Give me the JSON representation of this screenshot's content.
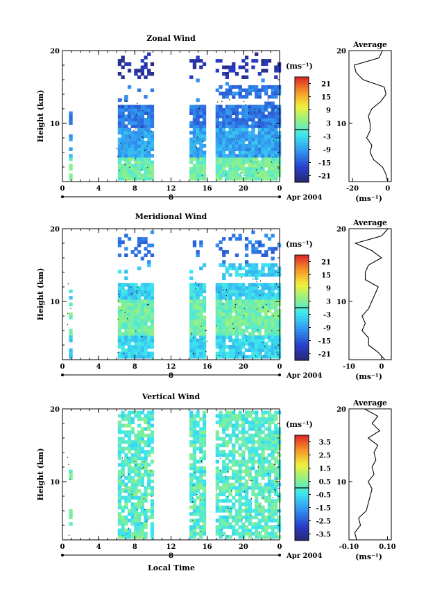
{
  "figure": {
    "xlabel": "Local Time",
    "date_label": "Apr 2004",
    "date_day": "8"
  },
  "chart_data": [
    {
      "type": "heatmap",
      "title": "Zonal Wind",
      "ylabel": "Height (km)",
      "xlabel": "",
      "x_ticks": [
        "0",
        "4",
        "8",
        "12",
        "16",
        "20",
        "0"
      ],
      "y_ticks": [
        "10",
        "20"
      ],
      "xlim": [
        0,
        24
      ],
      "ylim": [
        2,
        20
      ],
      "colorbar": {
        "unit": "(ms⁻¹)",
        "ticks": [
          "21",
          "15",
          "9",
          "3",
          "-3",
          "-9",
          "-15",
          "-21"
        ],
        "range": [
          -24,
          24
        ]
      },
      "data_gaps_hours": [
        [
          1,
          6
        ],
        [
          10,
          14
        ],
        [
          16,
          17
        ]
      ],
      "grid": false,
      "average_profile": {
        "title": "Average",
        "xlabel": "(ms⁻¹)",
        "x_ticks": [
          "-20",
          "0"
        ],
        "xlim": [
          -22,
          2
        ],
        "height_km": [
          2,
          3,
          4,
          5,
          6,
          7,
          8,
          9,
          10,
          11,
          12,
          13,
          14,
          15,
          16,
          17,
          18,
          19,
          20
        ],
        "value": [
          0,
          -1,
          -3,
          -8,
          -10,
          -9,
          -12,
          -10,
          -10,
          -11,
          -9,
          -4,
          -1,
          -2,
          -14,
          -18,
          -19,
          -5,
          -3
        ]
      }
    },
    {
      "type": "heatmap",
      "title": "Meridional Wind",
      "ylabel": "Height (km)",
      "xlabel": "",
      "x_ticks": [
        "0",
        "4",
        "8",
        "12",
        "16",
        "20",
        "0"
      ],
      "y_ticks": [
        "10",
        "20"
      ],
      "xlim": [
        0,
        24
      ],
      "ylim": [
        2,
        20
      ],
      "colorbar": {
        "unit": "(ms⁻¹)",
        "ticks": [
          "21",
          "15",
          "9",
          "3",
          "-3",
          "-9",
          "-15",
          "-21"
        ],
        "range": [
          -24,
          24
        ]
      },
      "data_gaps_hours": [
        [
          1,
          6
        ],
        [
          10,
          14
        ],
        [
          16,
          17
        ]
      ],
      "grid": false,
      "average_profile": {
        "title": "Average",
        "xlabel": "(ms⁻¹)",
        "x_ticks": [
          "-10",
          "0"
        ],
        "xlim": [
          -10,
          3
        ],
        "height_km": [
          2,
          3,
          4,
          5,
          6,
          7,
          8,
          9,
          10,
          11,
          12,
          13,
          14,
          15,
          16,
          17,
          18,
          19,
          20
        ],
        "value": [
          1,
          -1,
          -4,
          -4,
          -6,
          -5,
          -6,
          -4,
          -3,
          -2,
          -1,
          -5,
          -5,
          -4,
          0,
          -3,
          -8,
          0,
          2
        ]
      }
    },
    {
      "type": "heatmap",
      "title": "Vertical Wind",
      "ylabel": "Height (km)",
      "xlabel": "Local Time",
      "x_ticks": [
        "0",
        "4",
        "8",
        "12",
        "16",
        "20",
        "0"
      ],
      "y_ticks": [
        "10",
        "20"
      ],
      "xlim": [
        0,
        24
      ],
      "ylim": [
        2,
        20
      ],
      "colorbar": {
        "unit": "(ms⁻¹)",
        "ticks": [
          "3.5",
          "2.5",
          "1.5",
          "0.5",
          "-0.5",
          "-1.5",
          "-2.5",
          "-3.5"
        ],
        "range": [
          -4,
          4
        ]
      },
      "data_gaps_hours": [
        [
          1,
          6
        ],
        [
          10,
          14
        ],
        [
          16,
          17
        ]
      ],
      "grid": false,
      "average_profile": {
        "title": "Average",
        "xlabel": "(ms⁻¹)",
        "x_ticks": [
          "-0.10",
          "0.10"
        ],
        "xlim": [
          -0.1,
          0.12
        ],
        "height_km": [
          2,
          3,
          4,
          5,
          6,
          7,
          8,
          9,
          10,
          11,
          12,
          13,
          14,
          15,
          16,
          17,
          18,
          19,
          20
        ],
        "value": [
          -0.06,
          -0.07,
          -0.04,
          -0.05,
          -0.01,
          0.0,
          0.01,
          0.02,
          0.0,
          0.03,
          0.02,
          0.04,
          0.03,
          0.05,
          0.0,
          0.06,
          0.02,
          0.05,
          -0.02
        ]
      }
    }
  ]
}
